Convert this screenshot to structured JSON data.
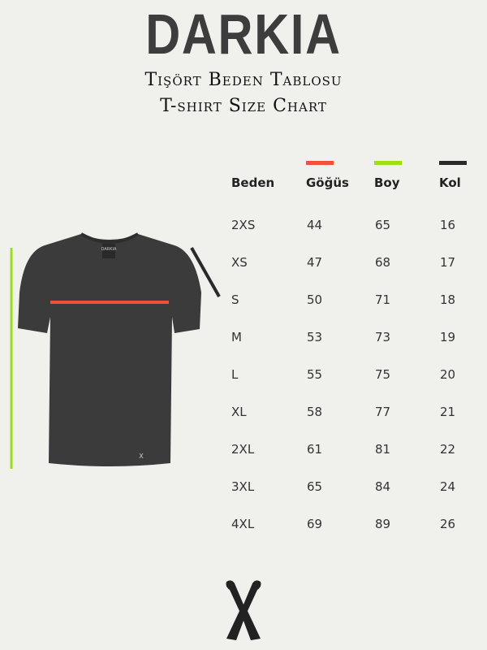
{
  "brand": "DARKIA",
  "title_tr": "Tişört Beden Tablosu",
  "title_en": "T-shirt Size Chart",
  "colors": {
    "chest": "#f0503c",
    "length": "#9be015",
    "sleeve": "#2a2a2a",
    "shirt": "#3b3b3b"
  },
  "table": {
    "headers": [
      "Beden",
      "Göğüs",
      "Boy",
      "Kol"
    ],
    "rows": [
      [
        "2XS",
        "44",
        "65",
        "16"
      ],
      [
        "XS",
        "47",
        "68",
        "17"
      ],
      [
        "S",
        "50",
        "71",
        "18"
      ],
      [
        "M",
        "53",
        "73",
        "19"
      ],
      [
        "L",
        "55",
        "75",
        "20"
      ],
      [
        "XL",
        "58",
        "77",
        "21"
      ],
      [
        "2XL",
        "61",
        "81",
        "22"
      ],
      [
        "3XL",
        "65",
        "84",
        "24"
      ],
      [
        "4XL",
        "69",
        "89",
        "26"
      ]
    ]
  },
  "shirt_label": "DARKIA"
}
